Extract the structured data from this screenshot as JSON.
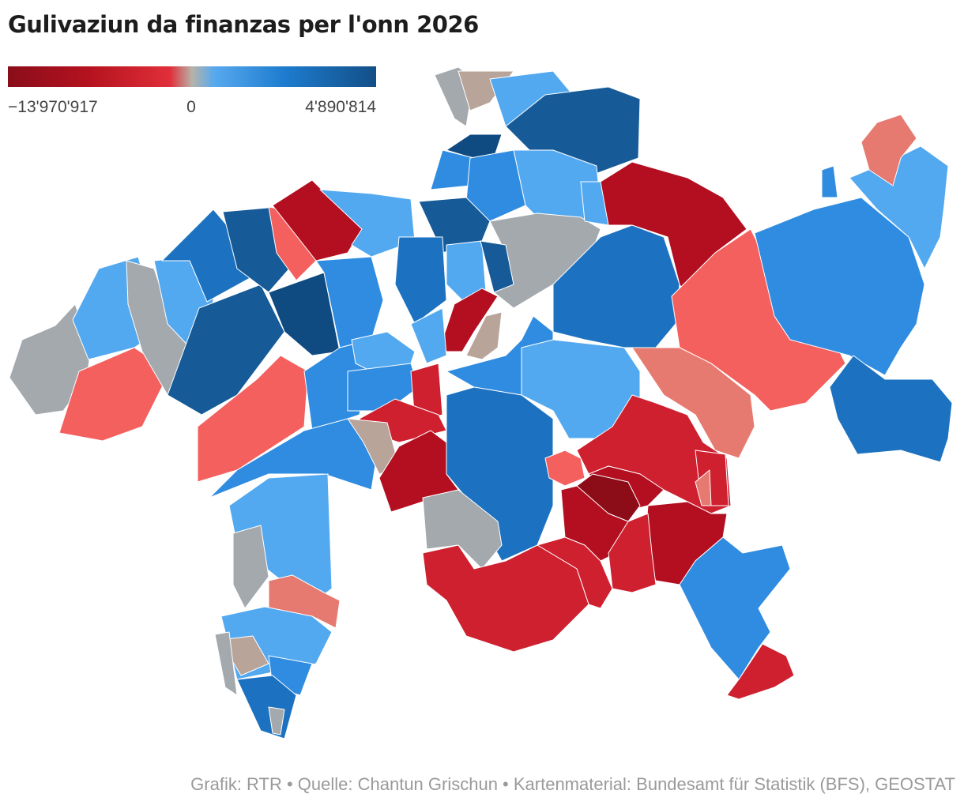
{
  "title": "Gulivaziun da finanzas per l'onn 2026",
  "legend": {
    "min_label": "−13'970'917",
    "mid_label": "0",
    "max_label": "4'890'814",
    "min_value": -13970917,
    "mid_value": 0,
    "max_value": 4890814,
    "colors": [
      "#8a0d1a",
      "#b5121f",
      "#e02f3a",
      "#b7b3a8",
      "#58a9ee",
      "#1d7ccf",
      "#134f87"
    ]
  },
  "map": {
    "region_fill_colors": {
      "dark-red": "#8c0c18",
      "red": "#b30f20",
      "medium-red": "#cf2030",
      "light-red": "#f4605e",
      "pink": "#e67a70",
      "gray": "#a4a9ae",
      "taupe": "#b9a49a",
      "light-blue": "#53a9f0",
      "medium-blue": "#2f8ce0",
      "blue": "#1c72c0",
      "dark-blue": "#165b98",
      "navy": "#0f4a80"
    }
  },
  "source": "Grafik: RTR • Quelle: Chantun Grischun • Kartenmaterial: Bundesamt für Statistik (BFS), GEOSTAT"
}
